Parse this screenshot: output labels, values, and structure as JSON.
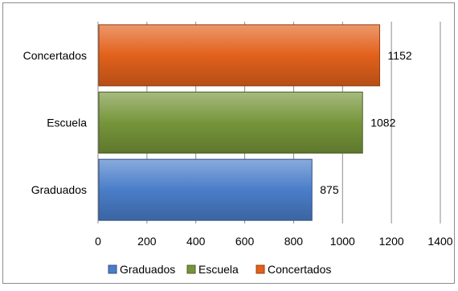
{
  "chart_data": {
    "type": "bar",
    "orientation": "horizontal",
    "categories": [
      "Graduados",
      "Escuela",
      "Concertados"
    ],
    "values": [
      875,
      1082,
      1152
    ],
    "colors": [
      "#4a7dc9",
      "#76953a",
      "#e2611b"
    ],
    "data_labels": [
      "875",
      "1082",
      "1152"
    ],
    "xlim": [
      0,
      1400
    ],
    "x_ticks": [
      "0",
      "200",
      "400",
      "600",
      "800",
      "1000",
      "1200",
      "1400"
    ],
    "grid": true,
    "legend": {
      "position": "bottom",
      "entries": [
        {
          "label": "Graduados",
          "color": "#4a7dc9"
        },
        {
          "label": "Escuela",
          "color": "#76953a"
        },
        {
          "label": "Concertados",
          "color": "#e2611b"
        }
      ]
    }
  }
}
